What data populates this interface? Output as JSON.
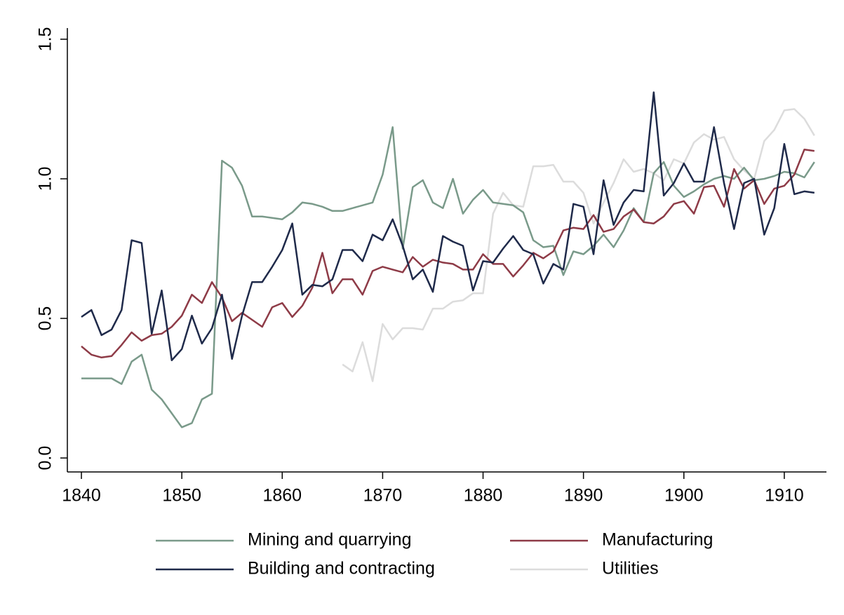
{
  "chart_data": {
    "type": "line",
    "x": [
      1840,
      1841,
      1842,
      1843,
      1844,
      1845,
      1846,
      1847,
      1848,
      1849,
      1850,
      1851,
      1852,
      1853,
      1854,
      1855,
      1856,
      1857,
      1858,
      1859,
      1860,
      1861,
      1862,
      1863,
      1864,
      1865,
      1866,
      1867,
      1868,
      1869,
      1870,
      1871,
      1872,
      1873,
      1874,
      1875,
      1876,
      1877,
      1878,
      1879,
      1880,
      1881,
      1882,
      1883,
      1884,
      1885,
      1886,
      1887,
      1888,
      1889,
      1890,
      1891,
      1892,
      1893,
      1894,
      1895,
      1896,
      1897,
      1898,
      1899,
      1900,
      1901,
      1902,
      1903,
      1904,
      1905,
      1906,
      1907,
      1908,
      1909,
      1910,
      1911,
      1912,
      1913
    ],
    "series": [
      {
        "name": "Mining and quarrying",
        "color": "#7a9a8a",
        "values": [
          0.285,
          0.285,
          0.285,
          0.285,
          0.265,
          0.345,
          0.37,
          0.245,
          0.21,
          0.16,
          0.11,
          0.125,
          0.21,
          0.23,
          1.065,
          1.04,
          0.975,
          0.865,
          0.865,
          0.86,
          0.855,
          0.88,
          0.915,
          0.91,
          0.9,
          0.885,
          0.885,
          0.895,
          0.905,
          0.915,
          1.015,
          1.185,
          0.75,
          0.97,
          0.995,
          0.915,
          0.895,
          1.0,
          0.875,
          0.925,
          0.96,
          0.915,
          0.91,
          0.905,
          0.88,
          0.78,
          0.755,
          0.76,
          0.655,
          0.74,
          0.73,
          0.76,
          0.8,
          0.755,
          0.815,
          0.895,
          0.845,
          1.02,
          1.06,
          0.975,
          0.935,
          0.955,
          0.98,
          1.0,
          1.01,
          1.0,
          1.04,
          0.995,
          1.0,
          1.01,
          1.025,
          1.02,
          1.005,
          1.06
        ]
      },
      {
        "name": "Manufacturing",
        "color": "#8e3b47",
        "values": [
          0.4,
          0.37,
          0.36,
          0.365,
          0.405,
          0.45,
          0.42,
          0.44,
          0.445,
          0.47,
          0.51,
          0.585,
          0.555,
          0.63,
          0.575,
          0.49,
          0.52,
          0.495,
          0.47,
          0.54,
          0.555,
          0.505,
          0.545,
          0.61,
          0.735,
          0.59,
          0.64,
          0.64,
          0.585,
          0.67,
          0.685,
          0.675,
          0.665,
          0.72,
          0.685,
          0.71,
          0.7,
          0.695,
          0.675,
          0.675,
          0.73,
          0.695,
          0.695,
          0.65,
          0.69,
          0.735,
          0.715,
          0.74,
          0.815,
          0.825,
          0.82,
          0.87,
          0.81,
          0.82,
          0.865,
          0.89,
          0.845,
          0.84,
          0.865,
          0.91,
          0.92,
          0.875,
          0.97,
          0.975,
          0.9,
          1.035,
          0.965,
          0.995,
          0.91,
          0.965,
          0.975,
          1.015,
          1.105,
          1.1
        ]
      },
      {
        "name": "Building and contracting",
        "color": "#1f2a4a",
        "values": [
          0.505,
          0.53,
          0.44,
          0.46,
          0.53,
          0.78,
          0.77,
          0.445,
          0.6,
          0.35,
          0.39,
          0.51,
          0.41,
          0.465,
          0.585,
          0.355,
          0.51,
          0.63,
          0.63,
          0.685,
          0.745,
          0.84,
          0.585,
          0.62,
          0.615,
          0.64,
          0.745,
          0.745,
          0.705,
          0.8,
          0.78,
          0.855,
          0.76,
          0.64,
          0.675,
          0.595,
          0.795,
          0.775,
          0.76,
          0.6,
          0.705,
          0.7,
          0.75,
          0.795,
          0.745,
          0.73,
          0.625,
          0.695,
          0.675,
          0.91,
          0.9,
          0.73,
          0.995,
          0.835,
          0.915,
          0.96,
          0.955,
          1.31,
          0.94,
          0.985,
          1.055,
          0.99,
          0.99,
          1.185,
          0.985,
          0.82,
          0.985,
          1.0,
          0.8,
          0.895,
          1.125,
          0.945,
          0.955,
          0.95
        ]
      },
      {
        "name": "Utilities",
        "color": "#dcdcdc",
        "values": [
          null,
          null,
          null,
          null,
          null,
          null,
          null,
          null,
          null,
          null,
          null,
          null,
          null,
          null,
          null,
          null,
          null,
          null,
          null,
          null,
          null,
          null,
          null,
          null,
          null,
          null,
          0.335,
          0.31,
          0.415,
          0.275,
          0.48,
          0.425,
          0.465,
          0.465,
          0.46,
          0.535,
          0.535,
          0.56,
          0.565,
          0.59,
          0.59,
          0.875,
          0.95,
          0.905,
          0.9,
          1.045,
          1.045,
          1.05,
          0.99,
          0.99,
          0.95,
          0.84,
          0.915,
          0.985,
          1.07,
          1.025,
          1.035,
          1.02,
          0.995,
          1.07,
          1.055,
          1.13,
          1.16,
          1.14,
          1.15,
          1.07,
          1.03,
          1.0,
          1.135,
          1.175,
          1.245,
          1.25,
          1.215,
          1.155
        ]
      }
    ],
    "xlim": [
      1838.6,
      1914.2
    ],
    "xticks": [
      1840,
      1850,
      1860,
      1870,
      1880,
      1890,
      1900,
      1910
    ],
    "ylim": [
      -0.05,
      1.54
    ],
    "yticks": [
      {
        "value": 0,
        "label": "0.0"
      },
      0.5,
      {
        "value": 1,
        "label": "1.0"
      },
      1.5
    ],
    "legend": "bottom"
  }
}
